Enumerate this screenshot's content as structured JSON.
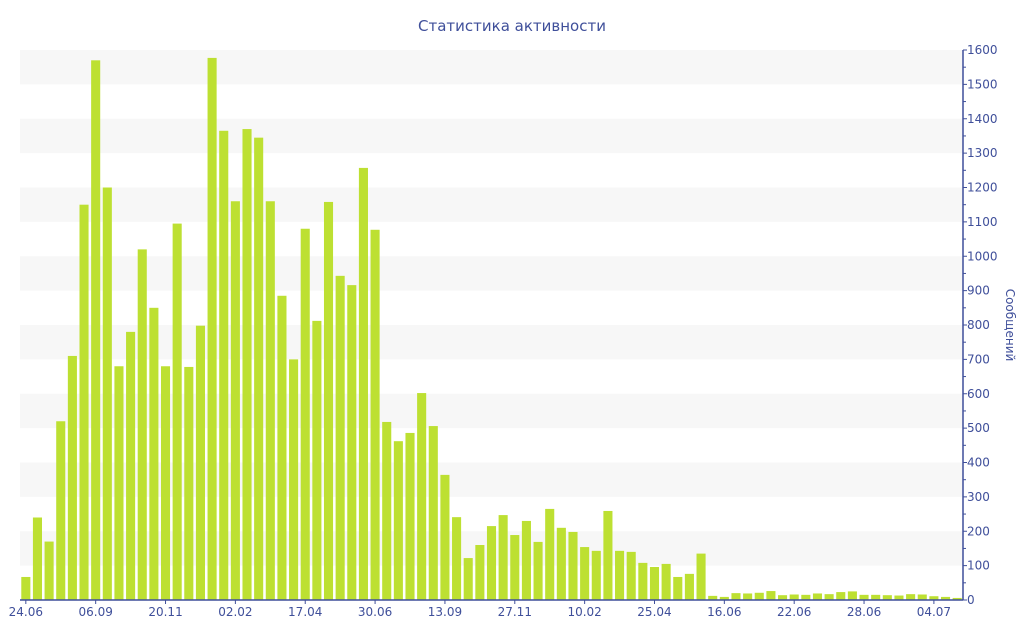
{
  "chart_data": {
    "type": "bar",
    "title": "Статистика активности",
    "xlabel": "",
    "ylabel": "Сообщений",
    "ylim": [
      0,
      1600
    ],
    "yticks": [
      0,
      100,
      200,
      300,
      400,
      500,
      600,
      700,
      800,
      900,
      1000,
      1100,
      1200,
      1300,
      1400,
      1500,
      1600
    ],
    "y_axis_side": "right",
    "grid": "alternating horizontal bands",
    "x_tick_labels": [
      {
        "bar": 0,
        "label": "24.06"
      },
      {
        "bar": 6,
        "label": "06.09"
      },
      {
        "bar": 12,
        "label": "20.11"
      },
      {
        "bar": 18,
        "label": "02.02"
      },
      {
        "bar": 24,
        "label": "17.04"
      },
      {
        "bar": 30,
        "label": "30.06"
      },
      {
        "bar": 36,
        "label": "13.09"
      },
      {
        "bar": 42,
        "label": "27.11"
      },
      {
        "bar": 48,
        "label": "10.02"
      },
      {
        "bar": 54,
        "label": "25.04"
      },
      {
        "bar": 60,
        "label": "16.06"
      },
      {
        "bar": 66,
        "label": "22.06"
      },
      {
        "bar": 72,
        "label": "28.06"
      },
      {
        "bar": 78,
        "label": "04.07"
      }
    ],
    "values": [
      67,
      240,
      170,
      520,
      710,
      1150,
      1570,
      1200,
      680,
      780,
      1020,
      850,
      680,
      1095,
      678,
      798,
      1577,
      1365,
      1160,
      1370,
      1345,
      1160,
      885,
      700,
      1080,
      812,
      1158,
      943,
      916,
      1257,
      1077,
      518,
      462,
      486,
      602,
      506,
      364,
      241,
      122,
      160,
      215,
      247,
      189,
      230,
      169,
      265,
      210,
      198,
      154,
      143,
      259,
      143,
      140,
      108,
      96,
      105,
      67,
      76,
      135,
      12,
      9,
      20,
      19,
      21,
      26,
      14,
      16,
      15,
      19,
      17,
      23,
      25,
      15,
      15,
      14,
      13,
      17,
      16,
      11,
      9,
      6
    ],
    "colors": {
      "bar": "#bde032",
      "axis": "#3f4f9a",
      "band": "#f7f7f7"
    }
  }
}
